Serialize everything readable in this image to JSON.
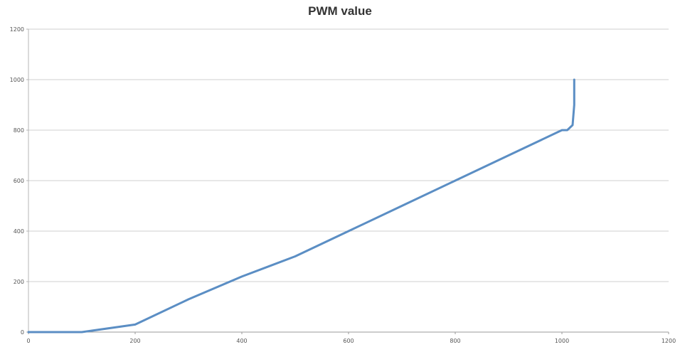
{
  "chart_data": {
    "type": "line",
    "title": "PWM value",
    "xlabel": "",
    "ylabel": "",
    "xlim": [
      0,
      1200
    ],
    "ylim": [
      0,
      1200
    ],
    "xticks": [
      "0",
      "200",
      "400",
      "600",
      "800",
      "1000",
      "1200"
    ],
    "yticks": [
      "0",
      "200",
      "400",
      "600",
      "800",
      "1000",
      "1200"
    ],
    "grid": "horizontal",
    "legend": "none",
    "series": [
      {
        "color": "#5b8ec4",
        "x": [
          0,
          100,
          200,
          300,
          400,
          500,
          600,
          700,
          800,
          900,
          1000,
          1010,
          1020,
          1023,
          1023
        ],
        "y": [
          0,
          0,
          30,
          130,
          220,
          300,
          400,
          500,
          600,
          700,
          800,
          800,
          820,
          900,
          1000
        ]
      }
    ]
  }
}
